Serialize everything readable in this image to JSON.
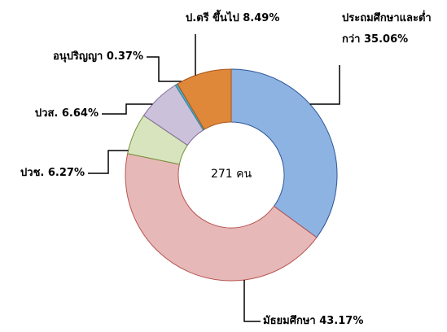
{
  "chart_data": {
    "type": "donut",
    "center_label": "271 คน",
    "categories": [
      "ประถมศึกษาและต่ำกว่า",
      "มัธยมศึกษา",
      "ปวช.",
      "ปวส.",
      "อนุปริญญา",
      "ป.ตรี ขึ้นไป"
    ],
    "values": [
      35.06,
      43.17,
      6.27,
      6.64,
      0.37,
      8.49
    ],
    "value_labels": [
      "35.06%",
      "43.17%",
      "6.27%",
      "6.64%",
      "0.37%",
      "8.49%"
    ],
    "colors": [
      "#8db3e2",
      "#e6b9b8",
      "#d7e4bd",
      "#ccc1da",
      "#4bacc6",
      "#e0883a"
    ],
    "stroke_colors": [
      "#2f5597",
      "#b85450",
      "#77933c",
      "#7f6a9c",
      "#31859c",
      "#a8561a"
    ]
  }
}
